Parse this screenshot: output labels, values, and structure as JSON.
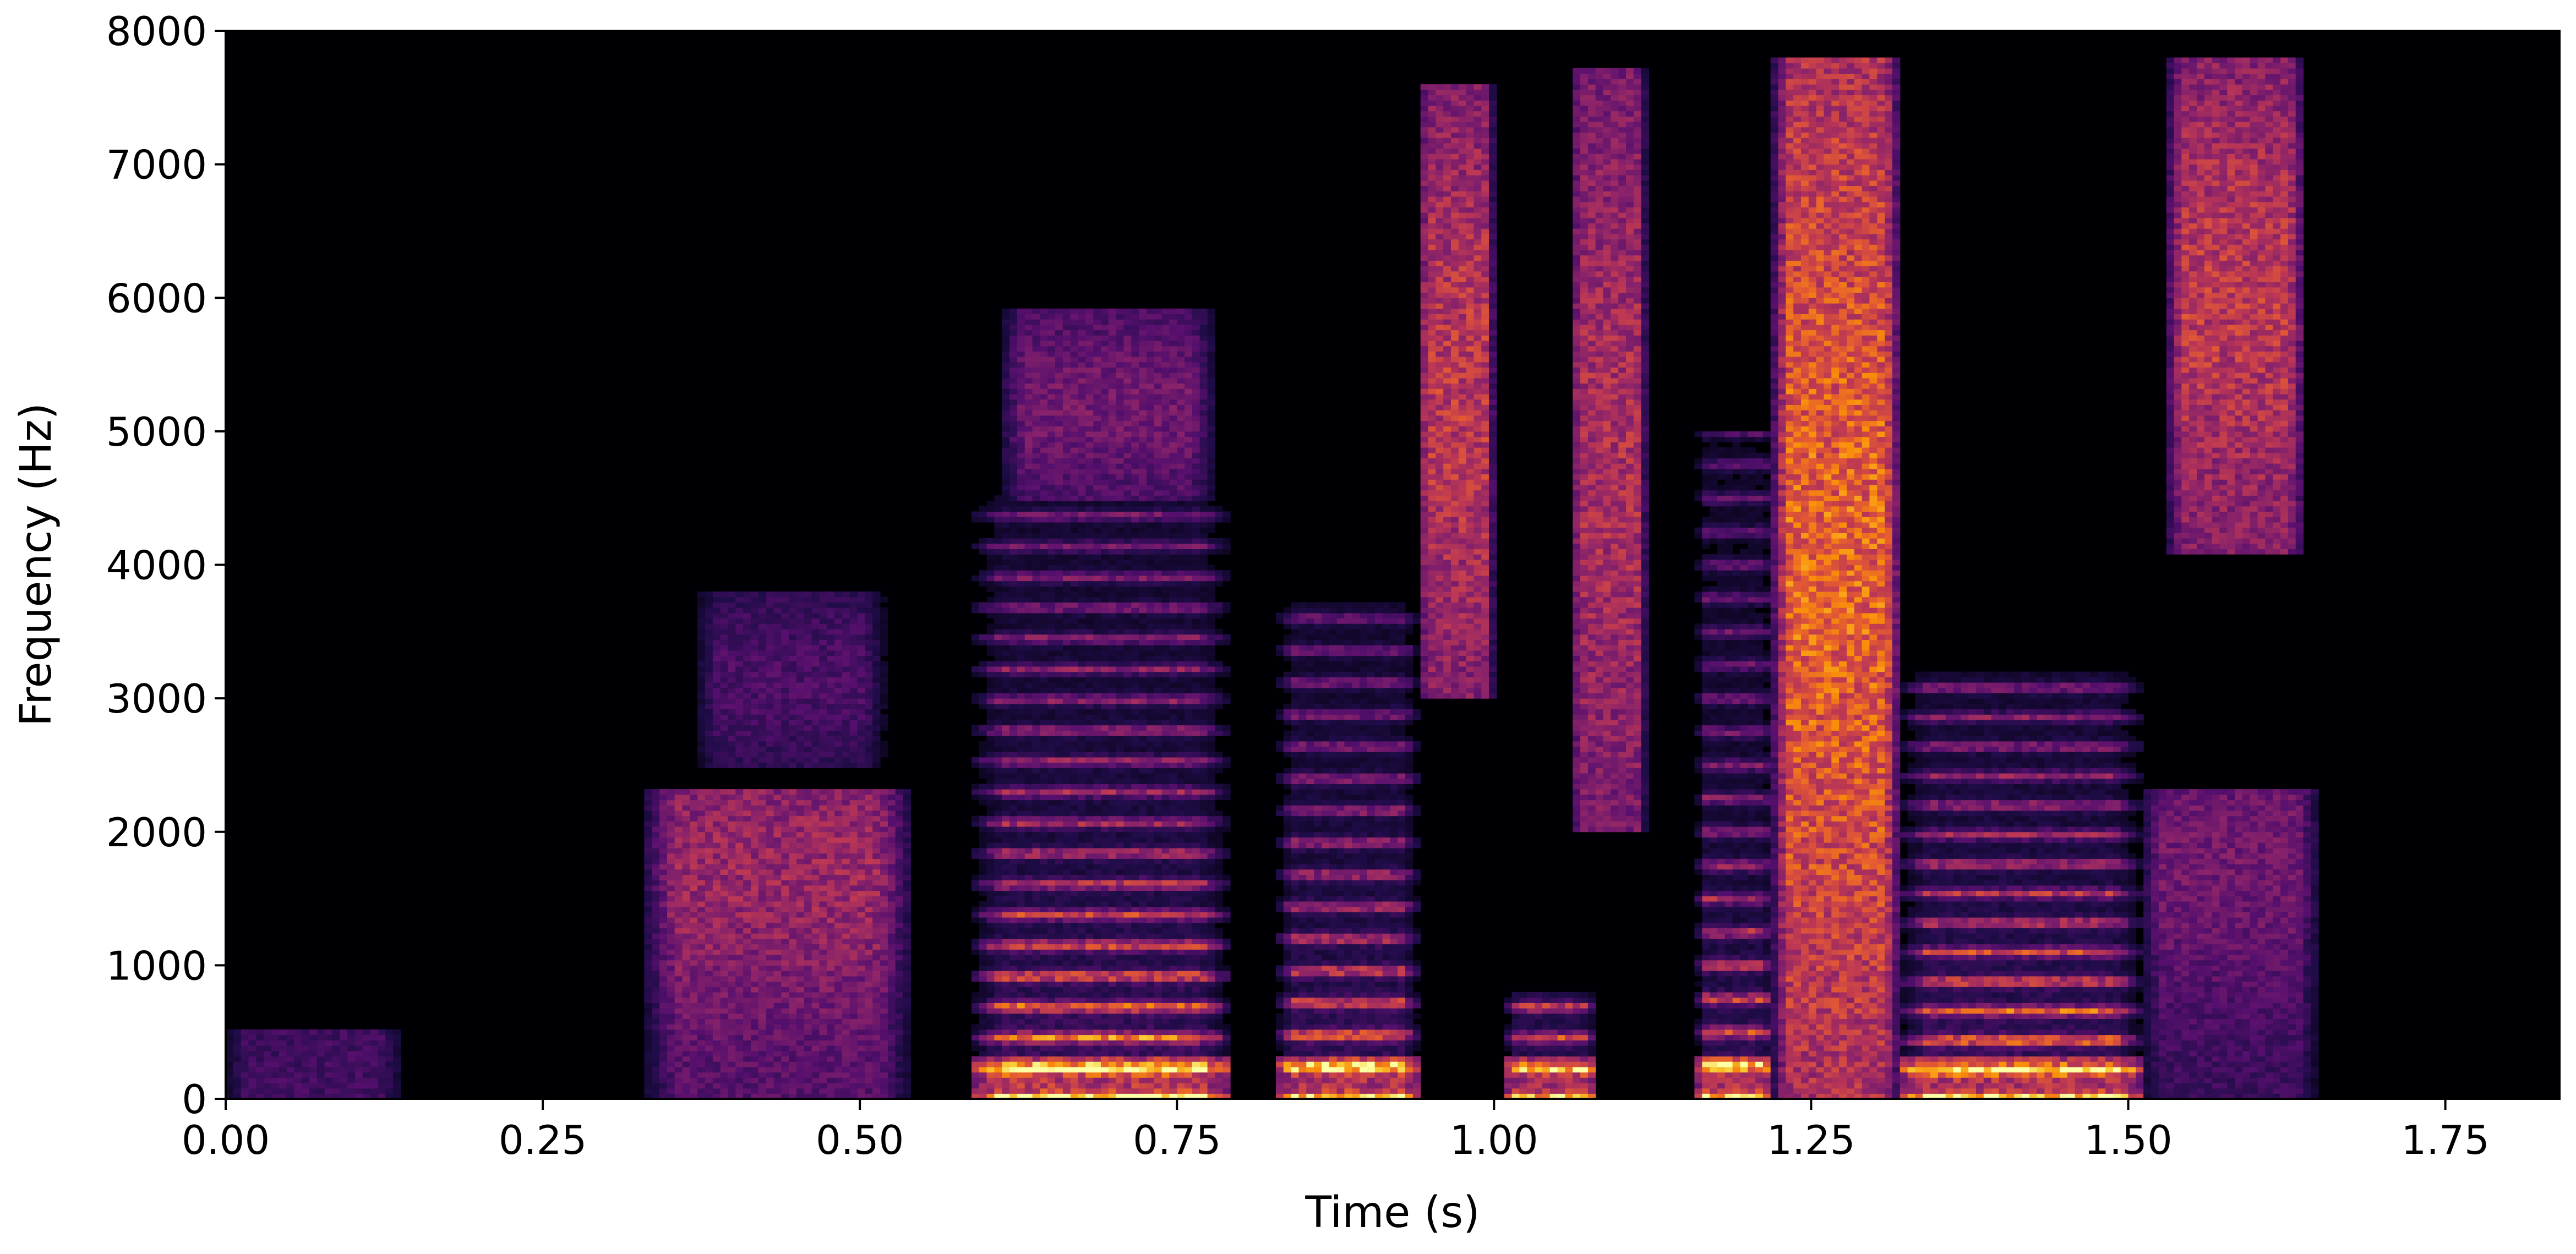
{
  "chart_data": {
    "type": "heatmap",
    "title": "",
    "xlabel": "Time (s)",
    "ylabel": "Frequency (Hz)",
    "xlim": [
      0,
      1.84
    ],
    "ylim": [
      0,
      8000
    ],
    "x_ticks": [
      0.0,
      0.25,
      0.5,
      0.75,
      1.0,
      1.25,
      1.5,
      1.75
    ],
    "x_tick_labels": [
      "0.00",
      "0.25",
      "0.50",
      "0.75",
      "1.00",
      "1.25",
      "1.50",
      "1.75"
    ],
    "y_ticks": [
      0,
      1000,
      2000,
      3000,
      4000,
      5000,
      6000,
      7000,
      8000
    ],
    "y_tick_labels": [
      "0",
      "1000",
      "2000",
      "3000",
      "4000",
      "5000",
      "6000",
      "7000",
      "8000"
    ],
    "colormap": "inferno",
    "background_color": "#000004",
    "grid": false,
    "segments": [
      {
        "t_start": 0.0,
        "t_end": 0.14,
        "f_max": 500,
        "kind": "noise",
        "intensity": 0.22
      },
      {
        "t_start": 0.33,
        "t_end": 0.54,
        "f_max": 2300,
        "kind": "fricative",
        "intensity": 0.45,
        "f_center": 1700
      },
      {
        "t_start": 0.37,
        "t_end": 0.52,
        "f_min": 2500,
        "f_max": 3800,
        "kind": "fricative",
        "intensity": 0.25
      },
      {
        "t_start": 0.59,
        "t_end": 0.79,
        "f_max": 4500,
        "kind": "voiced",
        "intensity": 0.95,
        "f0": 230
      },
      {
        "t_start": 0.61,
        "t_end": 0.78,
        "f_min": 4500,
        "f_max": 5900,
        "kind": "fricative",
        "intensity": 0.35
      },
      {
        "t_start": 0.83,
        "t_end": 0.94,
        "f_max": 3700,
        "kind": "voiced",
        "intensity": 0.85,
        "f0": 240
      },
      {
        "t_start": 0.94,
        "t_end": 1.0,
        "f_min": 3000,
        "f_max": 7600,
        "kind": "fricative",
        "intensity": 0.55
      },
      {
        "t_start": 1.01,
        "t_end": 1.08,
        "f_max": 800,
        "kind": "voiced",
        "intensity": 0.75,
        "f0": 230
      },
      {
        "t_start": 1.06,
        "t_end": 1.12,
        "f_min": 2000,
        "f_max": 7700,
        "kind": "fricative",
        "intensity": 0.5
      },
      {
        "t_start": 1.16,
        "t_end": 1.22,
        "f_max": 5000,
        "kind": "voiced",
        "intensity": 0.8,
        "f0": 250
      },
      {
        "t_start": 1.22,
        "t_end": 1.32,
        "f_max": 7800,
        "kind": "fricative",
        "intensity": 0.7,
        "f_center": 4000
      },
      {
        "t_start": 1.32,
        "t_end": 1.51,
        "f_max": 3200,
        "kind": "voiced",
        "intensity": 0.9,
        "f0": 220
      },
      {
        "t_start": 1.51,
        "t_end": 1.65,
        "f_max": 2300,
        "kind": "fricative",
        "intensity": 0.35,
        "f_center": 1800
      },
      {
        "t_start": 1.53,
        "t_end": 1.64,
        "f_min": 4100,
        "f_max": 7800,
        "kind": "fricative",
        "intensity": 0.55,
        "f_center": 6000
      }
    ]
  }
}
